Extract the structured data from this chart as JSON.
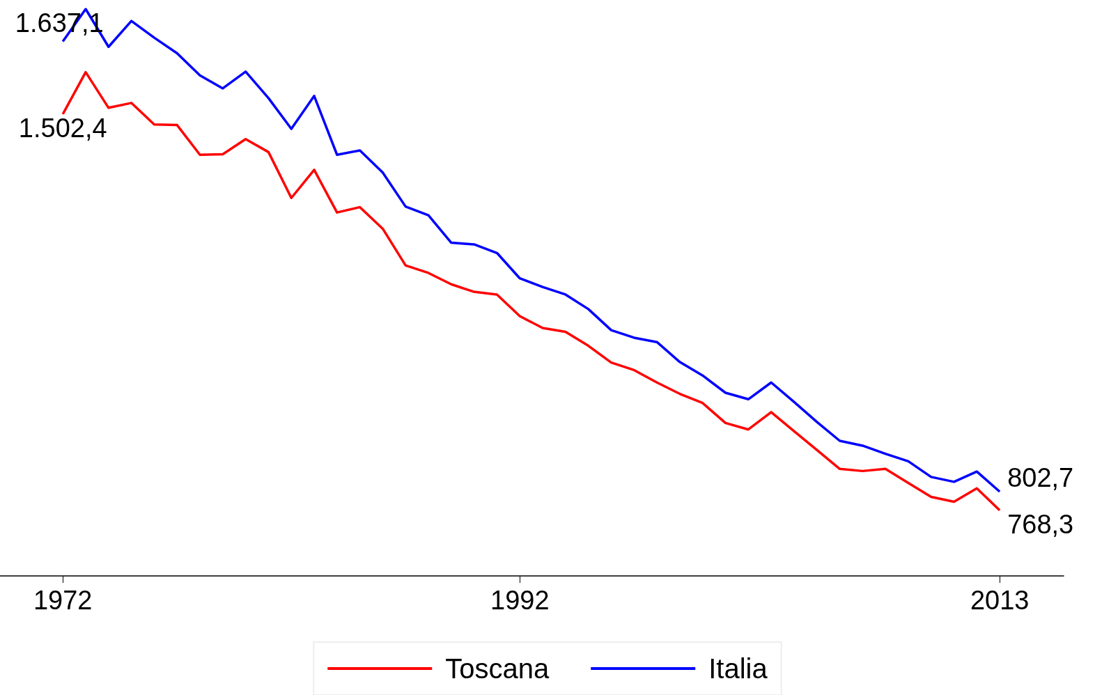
{
  "chart_data": {
    "type": "line",
    "x": [
      1972,
      1973,
      1974,
      1975,
      1976,
      1977,
      1978,
      1979,
      1980,
      1981,
      1982,
      1983,
      1984,
      1985,
      1986,
      1987,
      1988,
      1989,
      1990,
      1991,
      1992,
      1993,
      1994,
      1995,
      1996,
      1997,
      1998,
      1999,
      2000,
      2001,
      2002,
      2003,
      2004,
      2005,
      2006,
      2007,
      2008,
      2009,
      2010,
      2011,
      2012,
      2013
    ],
    "series": [
      {
        "name": "Toscana",
        "color": "#ff0000",
        "values": [
          1502.4,
          1580,
          1514,
          1523,
          1483,
          1482,
          1427,
          1428,
          1456,
          1432,
          1347,
          1399,
          1320,
          1330,
          1290,
          1222,
          1208,
          1187,
          1173,
          1168,
          1128,
          1106,
          1099,
          1073,
          1042,
          1028,
          1005,
          984,
          967,
          930,
          918,
          950,
          915,
          880,
          845,
          841,
          845,
          819,
          793,
          784,
          809,
          768.3
        ],
        "value_labels": [
          "1.502,4",
          null,
          null,
          null,
          null,
          null,
          null,
          null,
          null,
          null,
          null,
          null,
          null,
          null,
          null,
          null,
          null,
          null,
          null,
          null,
          null,
          null,
          null,
          null,
          null,
          null,
          null,
          null,
          null,
          null,
          null,
          null,
          null,
          null,
          null,
          null,
          null,
          null,
          null,
          null,
          null,
          "768,3"
        ]
      },
      {
        "name": "Italia",
        "color": "#0000ff",
        "values": [
          1637.1,
          1697,
          1627,
          1675,
          1644,
          1615,
          1574,
          1550,
          1581,
          1532,
          1475,
          1536,
          1427,
          1435,
          1394,
          1331,
          1315,
          1264,
          1261,
          1245,
          1198,
          1182,
          1168,
          1141,
          1102,
          1088,
          1080,
          1043,
          1018,
          986,
          974,
          1005,
          969,
          932,
          897,
          888,
          873,
          859,
          830,
          821,
          840,
          802.7
        ],
        "value_labels": [
          "1.637,1",
          null,
          null,
          null,
          null,
          null,
          null,
          null,
          null,
          null,
          null,
          null,
          null,
          null,
          null,
          null,
          null,
          null,
          null,
          null,
          null,
          null,
          null,
          null,
          null,
          null,
          null,
          null,
          null,
          null,
          null,
          null,
          null,
          null,
          null,
          null,
          null,
          null,
          null,
          null,
          null,
          "802,7"
        ]
      }
    ],
    "xlim": [
      1969.25,
      2015.8
    ],
    "xticks": [
      1972,
      1992,
      2013
    ],
    "tick_labels": "x",
    "grid": false,
    "legend": "bottom",
    "marker": "none",
    "line_style": "solid"
  }
}
